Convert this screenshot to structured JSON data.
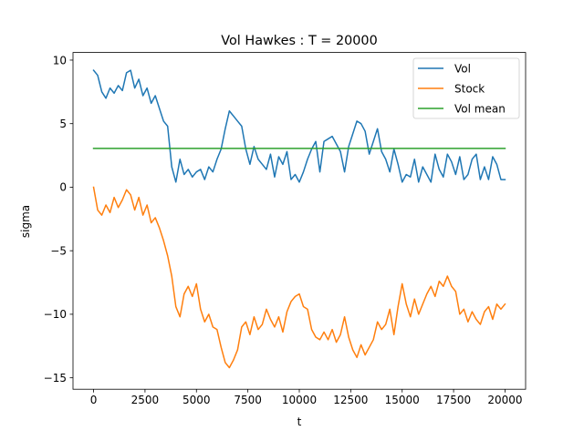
{
  "chart_data": {
    "type": "line",
    "title": "Vol Hawkes : T = 20000",
    "xlabel": "t",
    "ylabel": "sigma",
    "xlim": [
      -1000,
      21000
    ],
    "ylim": [
      -15.9,
      10.6
    ],
    "xticks": [
      0,
      2500,
      5000,
      7500,
      10000,
      12500,
      15000,
      17500,
      20000
    ],
    "xtick_labels": [
      "0",
      "2500",
      "5000",
      "7500",
      "10000",
      "12500",
      "15000",
      "17500",
      "20000"
    ],
    "yticks": [
      10,
      5,
      0,
      -5,
      -10,
      -15
    ],
    "ytick_labels": [
      "10",
      "5",
      "0",
      "−5",
      "−10",
      "−15"
    ],
    "grid": false,
    "legend_position": "top-right",
    "series": [
      {
        "name": "Vol",
        "color": "#1f77b4",
        "x": [
          0,
          200,
          400,
          600,
          800,
          1000,
          1200,
          1400,
          1600,
          1800,
          2000,
          2200,
          2400,
          2600,
          2800,
          3000,
          3200,
          3400,
          3600,
          3800,
          4000,
          4200,
          4400,
          4600,
          4800,
          5000,
          5200,
          5400,
          5600,
          5800,
          6000,
          6200,
          6400,
          6600,
          6800,
          7000,
          7200,
          7400,
          7600,
          7800,
          8000,
          8200,
          8400,
          8600,
          8800,
          9000,
          9200,
          9400,
          9600,
          9800,
          10000,
          10200,
          10400,
          10600,
          10800,
          11000,
          11200,
          11400,
          11600,
          11800,
          12000,
          12200,
          12400,
          12600,
          12800,
          13000,
          13200,
          13400,
          13600,
          13800,
          14000,
          14200,
          14400,
          14600,
          14800,
          15000,
          15200,
          15400,
          15600,
          15800,
          16000,
          16200,
          16400,
          16600,
          16800,
          17000,
          17200,
          17400,
          17600,
          17800,
          18000,
          18200,
          18400,
          18600,
          18800,
          19000,
          19200,
          19400,
          19600,
          19800,
          20000
        ],
        "y": [
          9.2,
          8.8,
          7.5,
          7.0,
          7.8,
          7.4,
          8.0,
          7.6,
          9.0,
          9.2,
          7.8,
          8.5,
          7.2,
          7.8,
          6.6,
          7.2,
          6.2,
          5.2,
          4.8,
          1.6,
          0.4,
          2.2,
          1.0,
          1.4,
          0.8,
          1.2,
          1.4,
          0.6,
          1.6,
          1.2,
          2.2,
          3.0,
          4.6,
          6.0,
          5.6,
          5.2,
          4.8,
          3.0,
          1.8,
          3.2,
          2.2,
          1.8,
          1.4,
          2.6,
          0.8,
          2.4,
          1.8,
          2.8,
          0.6,
          1.0,
          0.4,
          1.2,
          2.2,
          3.0,
          3.6,
          1.2,
          3.6,
          3.8,
          4.0,
          3.4,
          2.8,
          1.2,
          3.2,
          4.2,
          5.2,
          5.0,
          4.4,
          2.6,
          3.6,
          4.6,
          2.8,
          2.2,
          1.2,
          3.0,
          1.8,
          0.4,
          1.0,
          0.8,
          2.2,
          0.4,
          1.6,
          1.0,
          0.4,
          2.6,
          1.4,
          0.8,
          2.6,
          2.0,
          1.0,
          2.4,
          0.6,
          1.0,
          2.2,
          2.6,
          0.6,
          1.6,
          0.6,
          2.4,
          1.8,
          0.6,
          0.6
        ]
      },
      {
        "name": "Stock",
        "color": "#ff7f0e",
        "x": [
          0,
          200,
          400,
          600,
          800,
          1000,
          1200,
          1400,
          1600,
          1800,
          2000,
          2200,
          2400,
          2600,
          2800,
          3000,
          3200,
          3400,
          3600,
          3800,
          4000,
          4200,
          4400,
          4600,
          4800,
          5000,
          5200,
          5400,
          5600,
          5800,
          6000,
          6200,
          6400,
          6600,
          6800,
          7000,
          7200,
          7400,
          7600,
          7800,
          8000,
          8200,
          8400,
          8600,
          8800,
          9000,
          9200,
          9400,
          9600,
          9800,
          10000,
          10200,
          10400,
          10600,
          10800,
          11000,
          11200,
          11400,
          11600,
          11800,
          12000,
          12200,
          12400,
          12600,
          12800,
          13000,
          13200,
          13400,
          13600,
          13800,
          14000,
          14200,
          14400,
          14600,
          14800,
          15000,
          15200,
          15400,
          15600,
          15800,
          16000,
          16200,
          16400,
          16600,
          16800,
          17000,
          17200,
          17400,
          17600,
          17800,
          18000,
          18200,
          18400,
          18600,
          18800,
          19000,
          19200,
          19400,
          19600,
          19800,
          20000
        ],
        "y": [
          0.0,
          -1.8,
          -2.2,
          -1.4,
          -2.0,
          -0.8,
          -1.6,
          -1.0,
          -0.2,
          -0.6,
          -1.8,
          -0.8,
          -2.2,
          -1.4,
          -2.8,
          -2.4,
          -3.2,
          -4.2,
          -5.4,
          -7.0,
          -9.4,
          -10.2,
          -8.4,
          -7.8,
          -8.6,
          -7.6,
          -9.6,
          -10.6,
          -10.0,
          -11.0,
          -11.2,
          -12.6,
          -13.8,
          -14.2,
          -13.6,
          -12.8,
          -11.0,
          -10.6,
          -11.6,
          -10.2,
          -11.2,
          -10.8,
          -9.6,
          -10.4,
          -11.0,
          -10.2,
          -11.4,
          -9.8,
          -9.0,
          -8.6,
          -8.4,
          -9.4,
          -9.6,
          -11.2,
          -11.8,
          -12.0,
          -11.4,
          -12.0,
          -11.2,
          -12.2,
          -11.6,
          -10.2,
          -11.8,
          -12.8,
          -13.4,
          -12.4,
          -13.2,
          -12.6,
          -12.0,
          -10.6,
          -11.2,
          -10.8,
          -9.6,
          -11.6,
          -9.4,
          -7.6,
          -9.2,
          -10.2,
          -8.8,
          -10.0,
          -9.2,
          -8.4,
          -7.8,
          -8.6,
          -7.4,
          -7.8,
          -7.0,
          -7.8,
          -8.2,
          -10.0,
          -9.6,
          -10.6,
          -9.8,
          -10.4,
          -10.8,
          -9.8,
          -9.4,
          -10.4,
          -9.2,
          -9.6,
          -9.2
        ]
      },
      {
        "name": "Vol mean",
        "color": "#2ca02c",
        "x": [
          0,
          20000
        ],
        "y": [
          3.05,
          3.05
        ]
      }
    ]
  }
}
